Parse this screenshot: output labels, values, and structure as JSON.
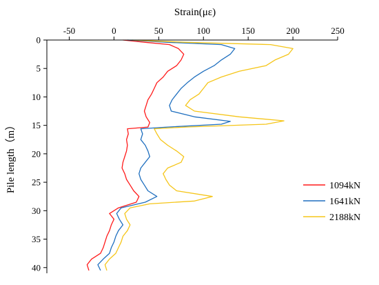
{
  "chart_data": {
    "type": "line",
    "title": "",
    "xlabel": "Strain(με)",
    "ylabel": "Pile length（m）",
    "xlim": [
      -75,
      250
    ],
    "ylim": [
      0,
      41
    ],
    "x_ticks": [
      -50,
      0,
      50,
      100,
      150,
      200,
      250
    ],
    "y_ticks": [
      0,
      5,
      10,
      15,
      20,
      25,
      30,
      35,
      40
    ],
    "x_axis_position": "top",
    "y_axis_inverted": true,
    "grid": false,
    "legend_position": "right",
    "series": [
      {
        "name": "1094kN",
        "color": "#ff1a1a",
        "points": [
          [
            10,
            0.0
          ],
          [
            35,
            0.4
          ],
          [
            62,
            0.8
          ],
          [
            72,
            1.5
          ],
          [
            78,
            2.5
          ],
          [
            75,
            3.5
          ],
          [
            70,
            4.5
          ],
          [
            60,
            5.5
          ],
          [
            55,
            6.5
          ],
          [
            48,
            7.5
          ],
          [
            45,
            8.5
          ],
          [
            42,
            9.5
          ],
          [
            38,
            10.5
          ],
          [
            36,
            11.5
          ],
          [
            34,
            12.5
          ],
          [
            36,
            13.5
          ],
          [
            40,
            14.5
          ],
          [
            38,
            15.3
          ],
          [
            15,
            15.6
          ],
          [
            16,
            16.5
          ],
          [
            14,
            17.5
          ],
          [
            15,
            18.5
          ],
          [
            14,
            19.5
          ],
          [
            12,
            20.5
          ],
          [
            10,
            21.5
          ],
          [
            9,
            22.5
          ],
          [
            12,
            23.5
          ],
          [
            14,
            24.5
          ],
          [
            18,
            25.5
          ],
          [
            22,
            26.5
          ],
          [
            28,
            27.5
          ],
          [
            25,
            28.5
          ],
          [
            5,
            29.5
          ],
          [
            -5,
            30.5
          ],
          [
            0,
            31.5
          ],
          [
            -3,
            32.5
          ],
          [
            -5,
            33.5
          ],
          [
            -8,
            34.5
          ],
          [
            -10,
            35.5
          ],
          [
            -12,
            36.5
          ],
          [
            -15,
            37.5
          ],
          [
            -25,
            38.5
          ],
          [
            -30,
            39.5
          ],
          [
            -28,
            40.5
          ]
        ]
      },
      {
        "name": "1641kN",
        "color": "#1f6fbf",
        "points": [
          [
            15,
            0.0
          ],
          [
            60,
            0.4
          ],
          [
            120,
            0.8
          ],
          [
            135,
            1.5
          ],
          [
            130,
            2.5
          ],
          [
            120,
            3.5
          ],
          [
            112,
            4.5
          ],
          [
            100,
            5.5
          ],
          [
            90,
            6.5
          ],
          [
            82,
            7.5
          ],
          [
            75,
            8.5
          ],
          [
            70,
            9.5
          ],
          [
            65,
            10.5
          ],
          [
            62,
            11.5
          ],
          [
            64,
            12.5
          ],
          [
            90,
            13.5
          ],
          [
            130,
            14.3
          ],
          [
            120,
            14.8
          ],
          [
            60,
            15.3
          ],
          [
            30,
            15.6
          ],
          [
            32,
            16.5
          ],
          [
            30,
            17.5
          ],
          [
            35,
            18.5
          ],
          [
            38,
            19.5
          ],
          [
            40,
            20.5
          ],
          [
            35,
            21.5
          ],
          [
            30,
            22.5
          ],
          [
            28,
            23.5
          ],
          [
            30,
            24.5
          ],
          [
            34,
            25.5
          ],
          [
            38,
            26.5
          ],
          [
            48,
            27.5
          ],
          [
            35,
            28.5
          ],
          [
            8,
            29.5
          ],
          [
            3,
            30.5
          ],
          [
            6,
            31.5
          ],
          [
            10,
            32.5
          ],
          [
            5,
            33.5
          ],
          [
            2,
            34.5
          ],
          [
            0,
            35.5
          ],
          [
            -3,
            36.5
          ],
          [
            -5,
            37.5
          ],
          [
            -12,
            38.5
          ],
          [
            -18,
            39.5
          ],
          [
            -15,
            40.5
          ]
        ]
      },
      {
        "name": "2188kN",
        "color": "#f5c518",
        "points": [
          [
            20,
            0.0
          ],
          [
            80,
            0.4
          ],
          [
            175,
            0.8
          ],
          [
            200,
            1.5
          ],
          [
            195,
            2.5
          ],
          [
            180,
            3.5
          ],
          [
            170,
            4.5
          ],
          [
            140,
            5.5
          ],
          [
            120,
            6.5
          ],
          [
            105,
            7.5
          ],
          [
            100,
            8.5
          ],
          [
            95,
            9.5
          ],
          [
            85,
            10.5
          ],
          [
            80,
            11.5
          ],
          [
            90,
            12.5
          ],
          [
            140,
            13.5
          ],
          [
            190,
            14.2
          ],
          [
            170,
            14.8
          ],
          [
            80,
            15.3
          ],
          [
            45,
            15.6
          ],
          [
            48,
            16.5
          ],
          [
            52,
            17.5
          ],
          [
            60,
            18.5
          ],
          [
            70,
            19.5
          ],
          [
            78,
            20.5
          ],
          [
            75,
            21.5
          ],
          [
            60,
            22.5
          ],
          [
            55,
            23.5
          ],
          [
            58,
            24.5
          ],
          [
            62,
            25.5
          ],
          [
            70,
            26.5
          ],
          [
            110,
            27.5
          ],
          [
            90,
            28.3
          ],
          [
            40,
            28.8
          ],
          [
            18,
            29.5
          ],
          [
            12,
            30.5
          ],
          [
            14,
            31.5
          ],
          [
            18,
            32.5
          ],
          [
            15,
            33.5
          ],
          [
            10,
            34.5
          ],
          [
            8,
            35.5
          ],
          [
            5,
            36.5
          ],
          [
            2,
            37.5
          ],
          [
            -5,
            38.5
          ],
          [
            -10,
            39.5
          ],
          [
            -8,
            40.5
          ]
        ]
      }
    ]
  }
}
